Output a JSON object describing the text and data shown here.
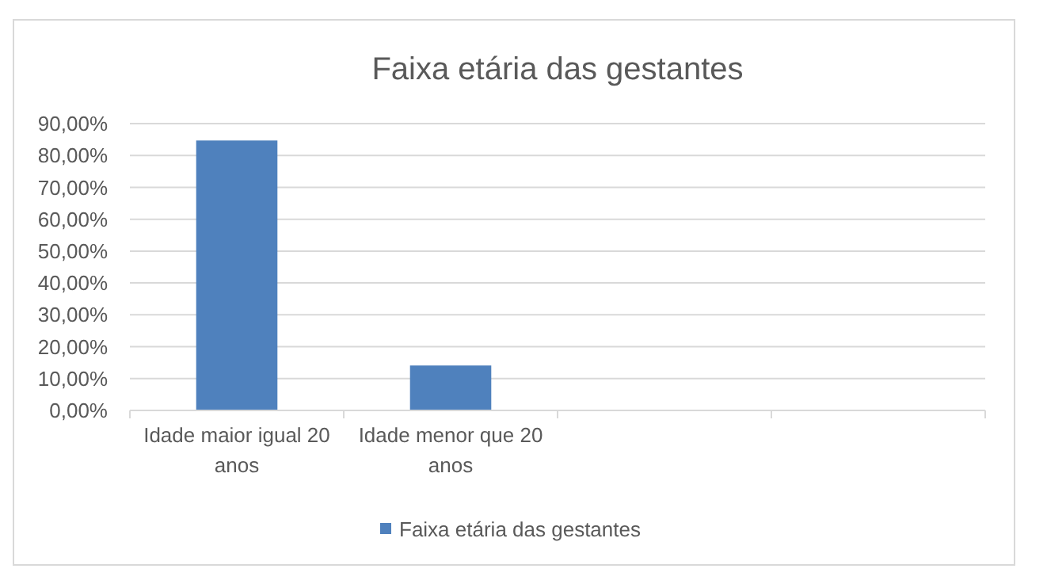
{
  "chart_data": {
    "type": "bar",
    "title": "Faixa etária das gestantes",
    "categories": [
      "Idade maior igual 20 anos",
      "Idade menor que 20 anos",
      null,
      null
    ],
    "series": [
      {
        "name": "Faixa etária das gestantes",
        "color": "#4f81bd",
        "values": [
          84.7,
          14.1,
          null,
          null
        ]
      }
    ],
    "ylim": [
      0,
      90
    ],
    "yticks": [
      {
        "value": 0,
        "label": "0,00%"
      },
      {
        "value": 10,
        "label": "10,00%"
      },
      {
        "value": 20,
        "label": "20,00%"
      },
      {
        "value": 30,
        "label": "30,00%"
      },
      {
        "value": 40,
        "label": "40,00%"
      },
      {
        "value": 50,
        "label": "50,00%"
      },
      {
        "value": 60,
        "label": "60,00%"
      },
      {
        "value": 70,
        "label": "70,00%"
      },
      {
        "value": 80,
        "label": "80,00%"
      },
      {
        "value": 90,
        "label": "90,00%"
      }
    ],
    "grid": "y",
    "legend": "bottom"
  }
}
